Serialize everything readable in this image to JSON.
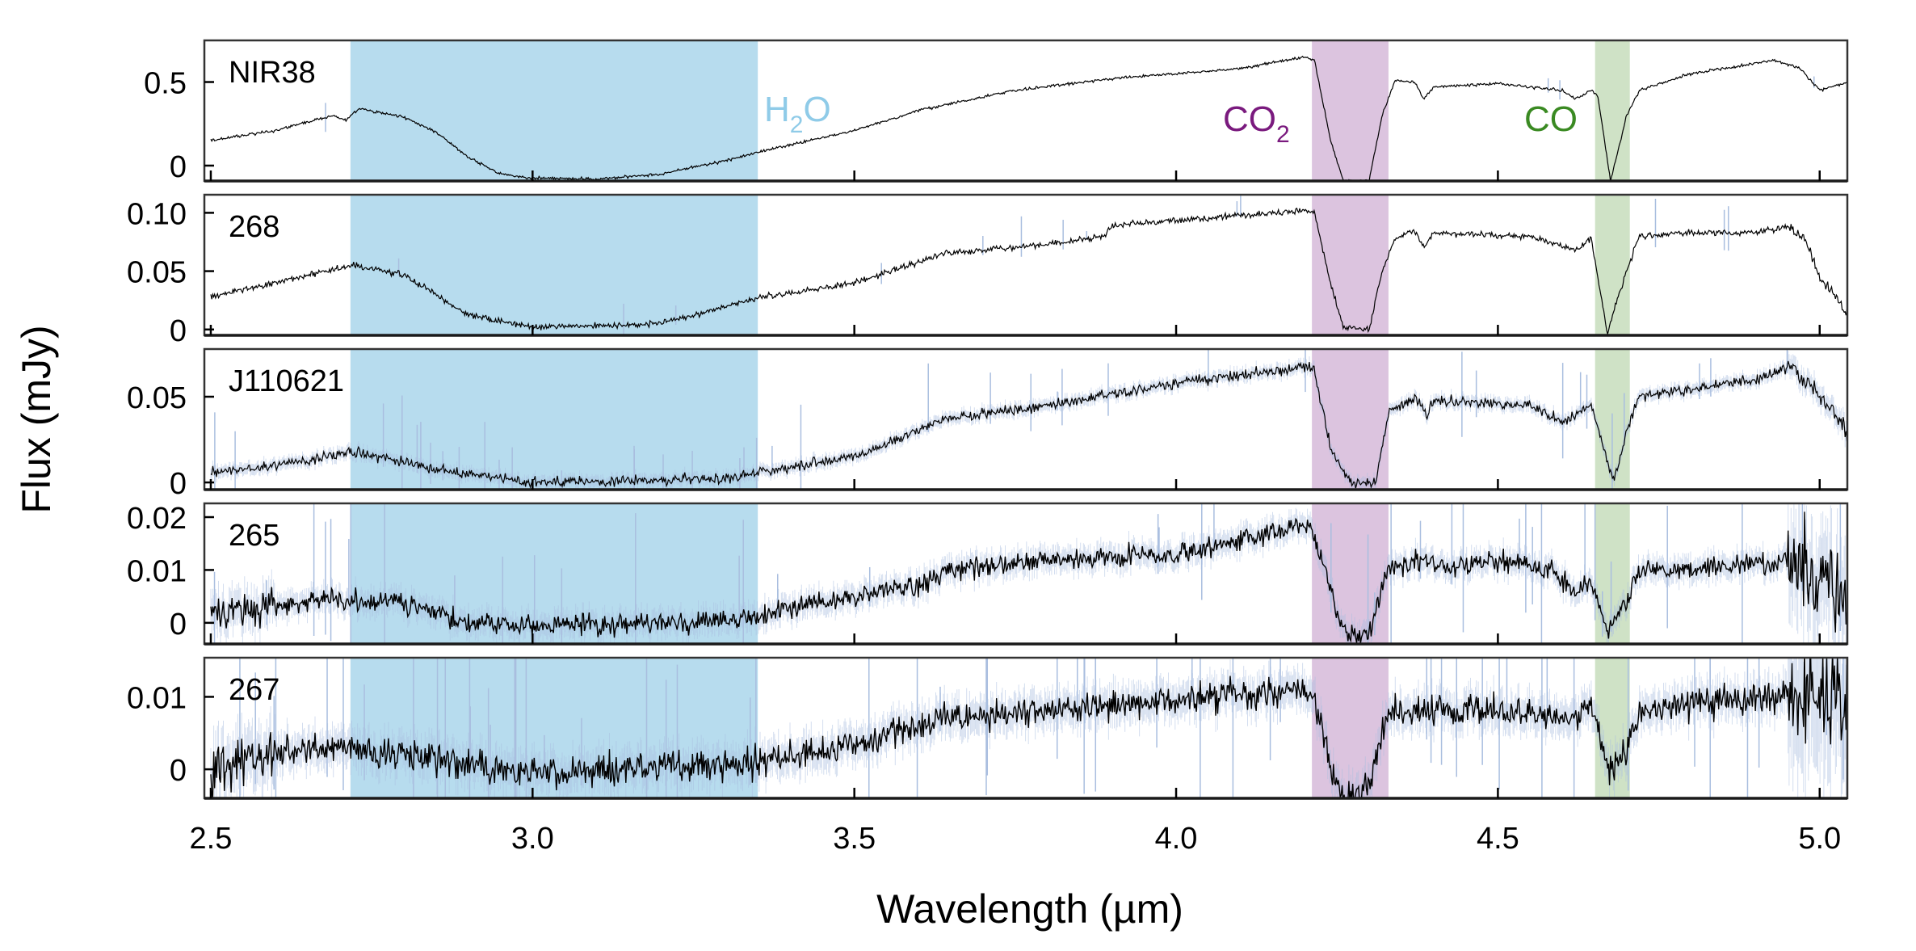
{
  "chart_data": {
    "type": "line",
    "xlabel": "Wavelength (µm)",
    "ylabel": "Flux (mJy)",
    "xlim": [
      2.49,
      5.043
    ],
    "xticks": [
      2.5,
      3.0,
      3.5,
      4.0,
      4.5,
      5.0
    ],
    "xtick_labels": [
      "2.5",
      "3.0",
      "3.5",
      "4.0",
      "4.5",
      "5.0"
    ],
    "grid": false,
    "bands": [
      {
        "name": "H2O",
        "label_main": "H",
        "label_sub": "2",
        "label_tail": "O",
        "range": [
          2.717,
          3.35
        ],
        "fill": "#b7dcee",
        "text_color": "#8fcbe8",
        "label_panel": 0
      },
      {
        "name": "CO2",
        "label_main": "CO",
        "label_sub": "2",
        "label_tail": "",
        "range": [
          4.211,
          4.33
        ],
        "fill": "#dcc4df",
        "text_color": "#7a1a7e",
        "label_panel": 0
      },
      {
        "name": "CO",
        "label_main": "CO",
        "label_sub": "",
        "label_tail": "",
        "range": [
          4.651,
          4.705
        ],
        "fill": "#cfe2c6",
        "text_color": "#3a8a22",
        "label_panel": 0
      }
    ],
    "series": [
      {
        "name": "NIR38",
        "ylim": [
          -0.092,
          0.749
        ],
        "yticks": [
          0,
          0.5
        ],
        "ytick_labels": [
          "0",
          "0.5"
        ],
        "noise": 0.006,
        "spikes": 4,
        "points": [
          [
            2.5,
            0.15
          ],
          [
            2.6,
            0.21
          ],
          [
            2.69,
            0.3
          ],
          [
            2.71,
            0.27
          ],
          [
            2.73,
            0.34
          ],
          [
            2.8,
            0.29
          ],
          [
            2.85,
            0.2
          ],
          [
            2.9,
            0.05
          ],
          [
            2.95,
            -0.05
          ],
          [
            3.0,
            -0.075
          ],
          [
            3.1,
            -0.08
          ],
          [
            3.2,
            -0.05
          ],
          [
            3.3,
            0.03
          ],
          [
            3.35,
            0.08
          ],
          [
            3.5,
            0.21
          ],
          [
            3.6,
            0.33
          ],
          [
            3.75,
            0.45
          ],
          [
            3.9,
            0.52
          ],
          [
            4.0,
            0.55
          ],
          [
            4.1,
            0.58
          ],
          [
            4.2,
            0.65
          ],
          [
            4.215,
            0.63
          ],
          [
            4.24,
            0.15
          ],
          [
            4.26,
            -0.09
          ],
          [
            4.3,
            -0.09
          ],
          [
            4.32,
            0.3
          ],
          [
            4.34,
            0.51
          ],
          [
            4.37,
            0.5
          ],
          [
            4.385,
            0.4
          ],
          [
            4.4,
            0.47
          ],
          [
            4.5,
            0.49
          ],
          [
            4.6,
            0.45
          ],
          [
            4.62,
            0.4
          ],
          [
            4.645,
            0.45
          ],
          [
            4.655,
            0.42
          ],
          [
            4.675,
            -0.09
          ],
          [
            4.7,
            0.3
          ],
          [
            4.72,
            0.45
          ],
          [
            4.8,
            0.55
          ],
          [
            4.93,
            0.63
          ],
          [
            4.97,
            0.58
          ],
          [
            5.0,
            0.45
          ],
          [
            5.043,
            0.5
          ]
        ]
      },
      {
        "name": "268",
        "ylim": [
          -0.005,
          0.1155
        ],
        "yticks": [
          0,
          0.05,
          0.1
        ],
        "ytick_labels": [
          "0",
          "0.05",
          "0.10"
        ],
        "noise": 0.0018,
        "spikes": 14,
        "points": [
          [
            2.5,
            0.028
          ],
          [
            2.6,
            0.04
          ],
          [
            2.72,
            0.055
          ],
          [
            2.8,
            0.047
          ],
          [
            2.9,
            0.012
          ],
          [
            3.0,
            0.002
          ],
          [
            3.2,
            0.005
          ],
          [
            3.35,
            0.027
          ],
          [
            3.5,
            0.04
          ],
          [
            3.64,
            0.065
          ],
          [
            3.8,
            0.073
          ],
          [
            3.89,
            0.08
          ],
          [
            3.9,
            0.089
          ],
          [
            4.2,
            0.102
          ],
          [
            4.215,
            0.1
          ],
          [
            4.24,
            0.04
          ],
          [
            4.26,
            0.002
          ],
          [
            4.3,
            0.0
          ],
          [
            4.32,
            0.05
          ],
          [
            4.34,
            0.078
          ],
          [
            4.37,
            0.085
          ],
          [
            4.385,
            0.07
          ],
          [
            4.4,
            0.083
          ],
          [
            4.55,
            0.08
          ],
          [
            4.62,
            0.068
          ],
          [
            4.645,
            0.078
          ],
          [
            4.67,
            -0.003
          ],
          [
            4.7,
            0.05
          ],
          [
            4.72,
            0.08
          ],
          [
            4.8,
            0.083
          ],
          [
            4.9,
            0.083
          ],
          [
            4.95,
            0.088
          ],
          [
            4.98,
            0.075
          ],
          [
            5.0,
            0.045
          ],
          [
            5.043,
            0.015
          ]
        ]
      },
      {
        "name": "J110621",
        "ylim": [
          -0.0042,
          0.0778
        ],
        "yticks": [
          0,
          0.05
        ],
        "ytick_labels": [
          "0",
          "0.05"
        ],
        "noise": 0.0022,
        "spikes": 40,
        "points": [
          [
            2.5,
            0.006
          ],
          [
            2.6,
            0.01
          ],
          [
            2.72,
            0.018
          ],
          [
            2.85,
            0.008
          ],
          [
            3.0,
            0.0
          ],
          [
            3.3,
            0.002
          ],
          [
            3.35,
            0.006
          ],
          [
            3.5,
            0.015
          ],
          [
            3.64,
            0.037
          ],
          [
            3.8,
            0.045
          ],
          [
            4.0,
            0.058
          ],
          [
            4.2,
            0.067
          ],
          [
            4.215,
            0.065
          ],
          [
            4.24,
            0.02
          ],
          [
            4.27,
            0.0
          ],
          [
            4.31,
            0.0
          ],
          [
            4.33,
            0.04
          ],
          [
            4.37,
            0.05
          ],
          [
            4.39,
            0.038
          ],
          [
            4.4,
            0.048
          ],
          [
            4.55,
            0.045
          ],
          [
            4.6,
            0.035
          ],
          [
            4.645,
            0.046
          ],
          [
            4.68,
            0.0
          ],
          [
            4.7,
            0.03
          ],
          [
            4.72,
            0.05
          ],
          [
            4.9,
            0.06
          ],
          [
            4.96,
            0.067
          ],
          [
            5.0,
            0.05
          ],
          [
            5.043,
            0.03
          ]
        ]
      },
      {
        "name": "265",
        "ylim": [
          -0.004,
          0.0226
        ],
        "yticks": [
          0,
          0.01,
          0.02
        ],
        "ytick_labels": [
          "0",
          "0.01",
          "0.02"
        ],
        "noise": 0.0014,
        "spikes": 40,
        "points": [
          [
            2.5,
            0.0015
          ],
          [
            2.7,
            0.0045
          ],
          [
            2.8,
            0.004
          ],
          [
            2.9,
            0.0
          ],
          [
            3.0,
            -0.0005
          ],
          [
            3.2,
            0.0
          ],
          [
            3.35,
            0.001
          ],
          [
            3.4,
            0.003
          ],
          [
            3.6,
            0.007
          ],
          [
            3.64,
            0.01
          ],
          [
            3.8,
            0.012
          ],
          [
            4.0,
            0.013
          ],
          [
            4.2,
            0.0185
          ],
          [
            4.215,
            0.017
          ],
          [
            4.24,
            0.006
          ],
          [
            4.26,
            -0.002
          ],
          [
            4.3,
            -0.002
          ],
          [
            4.33,
            0.01
          ],
          [
            4.38,
            0.012
          ],
          [
            4.42,
            0.01
          ],
          [
            4.5,
            0.012
          ],
          [
            4.58,
            0.01
          ],
          [
            4.62,
            0.006
          ],
          [
            4.645,
            0.008
          ],
          [
            4.67,
            -0.002
          ],
          [
            4.7,
            0.004
          ],
          [
            4.72,
            0.01
          ],
          [
            4.9,
            0.011
          ],
          [
            4.97,
            0.012
          ],
          [
            5.0,
            0.008
          ],
          [
            5.043,
            0.005
          ]
        ]
      },
      {
        "name": "267",
        "ylim": [
          -0.004,
          0.0154
        ],
        "yticks": [
          0,
          0.01
        ],
        "ytick_labels": [
          "0",
          "0.01"
        ],
        "noise": 0.0015,
        "spikes": 60,
        "points": [
          [
            2.5,
            0.0
          ],
          [
            2.6,
            0.002
          ],
          [
            2.7,
            0.003
          ],
          [
            2.8,
            0.002
          ],
          [
            3.0,
            -0.0005
          ],
          [
            3.35,
            0.001
          ],
          [
            3.5,
            0.003
          ],
          [
            3.64,
            0.007
          ],
          [
            4.0,
            0.0095
          ],
          [
            4.2,
            0.011
          ],
          [
            4.215,
            0.01
          ],
          [
            4.24,
            0.0
          ],
          [
            4.26,
            -0.004
          ],
          [
            4.3,
            -0.002
          ],
          [
            4.33,
            0.008
          ],
          [
            4.5,
            0.008
          ],
          [
            4.62,
            0.007
          ],
          [
            4.645,
            0.009
          ],
          [
            4.67,
            0.0
          ],
          [
            4.7,
            0.003
          ],
          [
            4.72,
            0.008
          ],
          [
            4.9,
            0.01
          ],
          [
            5.0,
            0.01
          ],
          [
            5.043,
            0.01
          ]
        ]
      }
    ],
    "colors": {
      "line": "#000000",
      "error": "#a9bedf",
      "axis": "#1a1a1a"
    }
  }
}
